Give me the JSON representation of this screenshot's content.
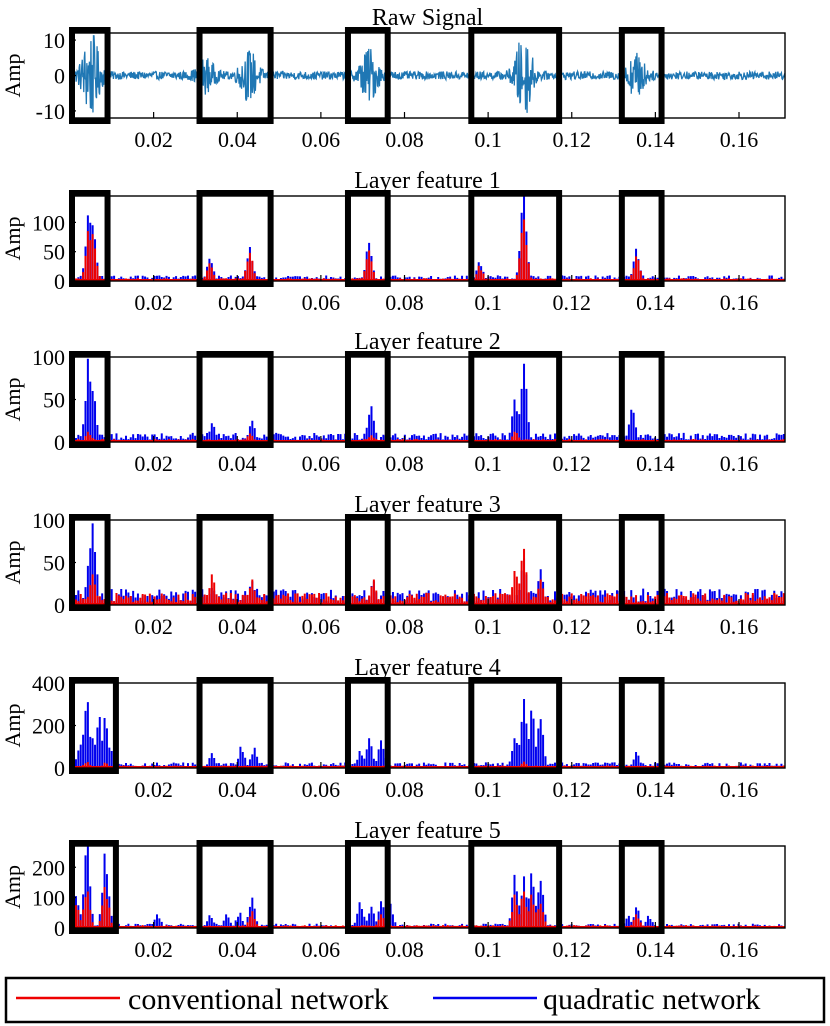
{
  "chart_data": [
    {
      "type": "line",
      "title": "Raw Signal",
      "ylabel": "Amp",
      "xlabel": "",
      "xlim": [
        0,
        0.171
      ],
      "ylim": [
        -12,
        12
      ],
      "yticks": [
        -10,
        0,
        10
      ],
      "ytick_labels": [
        "-10",
        "0",
        "10"
      ],
      "xticks": [
        0.02,
        0.04,
        0.06,
        0.08,
        0.1,
        0.12,
        0.14,
        0.16
      ],
      "xtick_labels": [
        "0.02",
        "0.04",
        "0.06",
        "0.08",
        "0.1",
        "0.12",
        "0.14",
        "0.16"
      ],
      "series": [
        {
          "name": "raw signal",
          "color": "#1f77b4",
          "noise": 1.2,
          "bursts": [
            [
              0.005,
              12
            ],
            [
              0.0325,
              4.5
            ],
            [
              0.0428,
              7
            ],
            [
              0.0715,
              7.5
            ],
            [
              0.1085,
              11.5
            ],
            [
              0.1355,
              6
            ]
          ]
        }
      ],
      "highlight_windows": [
        [
          0.0,
          0.0085
        ],
        [
          0.0305,
          0.0475
        ],
        [
          0.066,
          0.0755
        ],
        [
          0.0955,
          0.1165
        ],
        [
          0.1315,
          0.141
        ]
      ]
    },
    {
      "type": "bar",
      "title": "Layer feature 1",
      "ylabel": "Amp",
      "xlim": [
        0,
        0.171
      ],
      "ylim": [
        0,
        145
      ],
      "yticks": [
        0,
        50,
        100
      ],
      "ytick_labels": [
        "0",
        "50",
        "100"
      ],
      "xticks": [
        0.02,
        0.04,
        0.06,
        0.08,
        0.1,
        0.12,
        0.14,
        0.16
      ],
      "xtick_labels": [
        "0.02",
        "0.04",
        "0.06",
        "0.08",
        "0.1",
        "0.12",
        "0.14",
        "0.16"
      ],
      "series": [
        {
          "name": "quadratic network",
          "color": "#0000ee",
          "base": 8,
          "peaks": [
            [
              0.0045,
              112
            ],
            [
              0.0055,
              95
            ],
            [
              0.0335,
              38
            ],
            [
              0.043,
              58
            ],
            [
              0.0715,
              65
            ],
            [
              0.098,
              32
            ],
            [
              0.1085,
              145
            ],
            [
              0.1355,
              55
            ]
          ]
        },
        {
          "name": "conventional network",
          "color": "#ee0000",
          "base": 4,
          "peaks": [
            [
              0.0045,
              85
            ],
            [
              0.0055,
              80
            ],
            [
              0.0335,
              30
            ],
            [
              0.043,
              48
            ],
            [
              0.0715,
              52
            ],
            [
              0.098,
              26
            ],
            [
              0.1085,
              105
            ],
            [
              0.1355,
              42
            ]
          ]
        }
      ],
      "highlight_windows": [
        [
          0.0,
          0.0085
        ],
        [
          0.0305,
          0.0475
        ],
        [
          0.066,
          0.0755
        ],
        [
          0.0955,
          0.1165
        ],
        [
          0.1315,
          0.141
        ]
      ]
    },
    {
      "type": "bar",
      "title": "Layer feature 2",
      "ylabel": "Amp",
      "xlim": [
        0,
        0.171
      ],
      "ylim": [
        0,
        100
      ],
      "yticks": [
        0,
        50,
        100
      ],
      "ytick_labels": [
        "0",
        "50",
        "100"
      ],
      "xticks": [
        0.02,
        0.04,
        0.06,
        0.08,
        0.1,
        0.12,
        0.14,
        0.16
      ],
      "xtick_labels": [
        "0.02",
        "0.04",
        "0.06",
        "0.08",
        "0.1",
        "0.12",
        "0.14",
        "0.16"
      ],
      "series": [
        {
          "name": "quadratic network",
          "color": "#0000ee",
          "base": 9,
          "peaks": [
            [
              0.0045,
              98
            ],
            [
              0.0055,
              60
            ],
            [
              0.034,
              22
            ],
            [
              0.0435,
              25
            ],
            [
              0.072,
              42
            ],
            [
              0.1065,
              50
            ],
            [
              0.1085,
              92
            ],
            [
              0.1345,
              38
            ]
          ]
        },
        {
          "name": "conventional network",
          "color": "#ee0000",
          "base": 3,
          "peaks": [
            [
              0.0045,
              12
            ],
            [
              0.043,
              10
            ],
            [
              0.072,
              8
            ],
            [
              0.1065,
              12
            ]
          ]
        }
      ],
      "highlight_windows": [
        [
          0.0,
          0.0085
        ],
        [
          0.0305,
          0.0475
        ],
        [
          0.066,
          0.0755
        ],
        [
          0.0955,
          0.1165
        ],
        [
          0.1315,
          0.141
        ]
      ]
    },
    {
      "type": "bar",
      "title": "Layer feature 3",
      "ylabel": "Amp",
      "xlim": [
        0,
        0.171
      ],
      "ylim": [
        0,
        100
      ],
      "yticks": [
        0,
        50,
        100
      ],
      "ytick_labels": [
        "0",
        "50",
        "100"
      ],
      "xticks": [
        0.02,
        0.04,
        0.06,
        0.08,
        0.1,
        0.12,
        0.14,
        0.16
      ],
      "xtick_labels": [
        "0.02",
        "0.04",
        "0.06",
        "0.08",
        "0.1",
        "0.12",
        "0.14",
        "0.16"
      ],
      "series": [
        {
          "name": "quadratic network",
          "color": "#0000ee",
          "base": 16,
          "peaks": [
            [
              0.0045,
              46
            ],
            [
              0.0055,
              96
            ],
            [
              0.034,
              20
            ],
            [
              0.0435,
              28
            ],
            [
              0.0725,
              28
            ],
            [
              0.1085,
              55
            ],
            [
              0.1125,
              42
            ]
          ]
        },
        {
          "name": "conventional network",
          "color": "#ee0000",
          "base": 12,
          "peaks": [
            [
              0.0055,
              36
            ],
            [
              0.034,
              36
            ],
            [
              0.0435,
              30
            ],
            [
              0.0725,
              30
            ],
            [
              0.1065,
              40
            ],
            [
              0.1085,
              66
            ],
            [
              0.1125,
              30
            ]
          ]
        }
      ],
      "highlight_windows": [
        [
          0.0,
          0.0085
        ],
        [
          0.0305,
          0.0475
        ],
        [
          0.066,
          0.0755
        ],
        [
          0.0955,
          0.1165
        ],
        [
          0.1315,
          0.141
        ]
      ]
    },
    {
      "type": "bar",
      "title": "Layer feature 4",
      "ylabel": "Amp",
      "xlim": [
        0,
        0.171
      ],
      "ylim": [
        0,
        400
      ],
      "yticks": [
        0,
        200,
        400
      ],
      "ytick_labels": [
        "0",
        "200",
        "400"
      ],
      "xticks": [
        0.02,
        0.04,
        0.06,
        0.08,
        0.1,
        0.12,
        0.14,
        0.16
      ],
      "xtick_labels": [
        "0.02",
        "0.04",
        "0.06",
        "0.08",
        "0.1",
        "0.12",
        "0.14",
        "0.16"
      ],
      "series": [
        {
          "name": "quadratic network",
          "color": "#0000ee",
          "base": 22,
          "peaks": [
            [
              0.0025,
              110
            ],
            [
              0.004,
              310
            ],
            [
              0.0055,
              140
            ],
            [
              0.007,
              240
            ],
            [
              0.0085,
              235
            ],
            [
              0.01,
              80
            ],
            [
              0.034,
              70
            ],
            [
              0.041,
              100
            ],
            [
              0.044,
              95
            ],
            [
              0.0695,
              80
            ],
            [
              0.0715,
              140
            ],
            [
              0.0745,
              130
            ],
            [
              0.1065,
              140
            ],
            [
              0.1085,
              325
            ],
            [
              0.1105,
              270
            ],
            [
              0.1125,
              230
            ],
            [
              0.1355,
              75
            ]
          ]
        },
        {
          "name": "conventional network",
          "color": "#ee0000",
          "base": 10,
          "peaks": [
            [
              0.004,
              28
            ],
            [
              0.0085,
              25
            ],
            [
              0.1085,
              30
            ]
          ]
        }
      ],
      "highlight_windows": [
        [
          0.0,
          0.0105
        ],
        [
          0.0305,
          0.0475
        ],
        [
          0.066,
          0.0755
        ],
        [
          0.0955,
          0.1165
        ],
        [
          0.1315,
          0.141
        ]
      ]
    },
    {
      "type": "bar",
      "title": "Layer feature 5",
      "ylabel": "Amp",
      "xlim": [
        0,
        0.171
      ],
      "ylim": [
        0,
        270
      ],
      "yticks": [
        0,
        100,
        200
      ],
      "ytick_labels": [
        "0",
        "100",
        "200"
      ],
      "xticks": [
        0.02,
        0.04,
        0.06,
        0.08,
        0.1,
        0.12,
        0.14,
        0.16
      ],
      "xtick_labels": [
        "0.02",
        "0.04",
        "0.06",
        "0.08",
        "0.1",
        "0.12",
        "0.14",
        "0.16"
      ],
      "series": [
        {
          "name": "quadratic network",
          "color": "#0000ee",
          "base": 12,
          "peaks": [
            [
              0.0015,
              105
            ],
            [
              0.004,
              270
            ],
            [
              0.0085,
              245
            ],
            [
              0.021,
              45
            ],
            [
              0.0335,
              42
            ],
            [
              0.0375,
              45
            ],
            [
              0.0405,
              50
            ],
            [
              0.0435,
              100
            ],
            [
              0.0695,
              85
            ],
            [
              0.072,
              70
            ],
            [
              0.0745,
              88
            ],
            [
              0.0765,
              80
            ],
            [
              0.1065,
              175
            ],
            [
              0.1085,
              170
            ],
            [
              0.1105,
              180
            ],
            [
              0.1125,
              155
            ],
            [
              0.1335,
              40
            ],
            [
              0.1355,
              68
            ],
            [
              0.1385,
              40
            ]
          ]
        },
        {
          "name": "conventional network",
          "color": "#ee0000",
          "base": 8,
          "peaks": [
            [
              0.0015,
              75
            ],
            [
              0.004,
              120
            ],
            [
              0.0085,
              135
            ],
            [
              0.0435,
              55
            ],
            [
              0.0745,
              45
            ],
            [
              0.1065,
              110
            ],
            [
              0.1085,
              120
            ],
            [
              0.1105,
              110
            ],
            [
              0.1125,
              80
            ],
            [
              0.1355,
              45
            ]
          ]
        }
      ],
      "highlight_windows": [
        [
          0.0,
          0.0105
        ],
        [
          0.0305,
          0.0475
        ],
        [
          0.066,
          0.0755
        ],
        [
          0.0955,
          0.1165
        ],
        [
          0.1315,
          0.141
        ]
      ]
    }
  ],
  "legend": {
    "placement": "bottom",
    "entries": [
      {
        "label": "conventional network",
        "color": "#ee0000"
      },
      {
        "label": "quadratic network",
        "color": "#0000ee"
      }
    ]
  }
}
